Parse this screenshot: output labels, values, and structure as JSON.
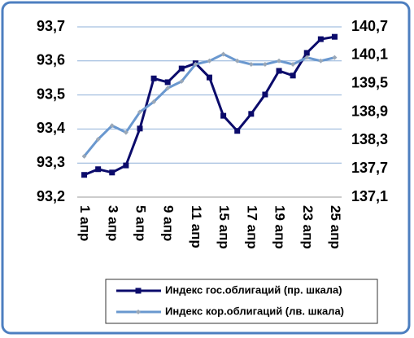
{
  "chart_data": {
    "type": "line",
    "categories": [
      "1 апр",
      null,
      "3 апр",
      null,
      "5 апр",
      null,
      "9 апр",
      null,
      "11 апр",
      null,
      "15 апр",
      null,
      "17 апр",
      null,
      "19 апр",
      null,
      "23 апр",
      null,
      "25 апр"
    ],
    "series": [
      {
        "name": "Индекс гос.облигаций (пр. шкала)",
        "color": "#0b0b6b",
        "marker": "square",
        "axis": "y2",
        "values": [
          137.57,
          137.69,
          137.62,
          137.77,
          138.55,
          139.61,
          139.53,
          139.82,
          139.93,
          139.63,
          138.82,
          138.5,
          138.86,
          139.27,
          139.77,
          139.67,
          140.15,
          140.44,
          140.49
        ]
      },
      {
        "name": "Индекс кор.облигаций (лв. шкала)",
        "color": "#6a98cf",
        "marker": "diamond",
        "values": [
          93.32,
          93.37,
          93.41,
          93.39,
          93.45,
          93.48,
          93.52,
          93.54,
          93.59,
          93.6,
          93.62,
          93.6,
          93.59,
          93.59,
          93.6,
          93.59,
          93.61,
          93.6,
          93.61
        ]
      }
    ],
    "ylim": [
      93.2,
      93.7
    ],
    "yticks": [
      {
        "value": 93.2,
        "label": "93,2"
      },
      {
        "value": 93.3,
        "label": "93,3"
      },
      {
        "value": 93.4,
        "label": "93,4"
      },
      {
        "value": 93.5,
        "label": "93,5"
      },
      {
        "value": 93.6,
        "label": "93,6"
      },
      {
        "value": 93.7,
        "label": "93,7"
      }
    ],
    "y2lim": [
      137.1,
      140.7
    ],
    "y2ticks": [
      {
        "value": 137.1,
        "label": "137,1"
      },
      {
        "value": 137.7,
        "label": "137,7"
      },
      {
        "value": 138.3,
        "label": "138,3"
      },
      {
        "value": 138.9,
        "label": "138,9"
      },
      {
        "value": 139.5,
        "label": "139,5"
      },
      {
        "value": 140.1,
        "label": "140,1"
      },
      {
        "value": 140.7,
        "label": "140,7"
      }
    ],
    "grid": true
  }
}
